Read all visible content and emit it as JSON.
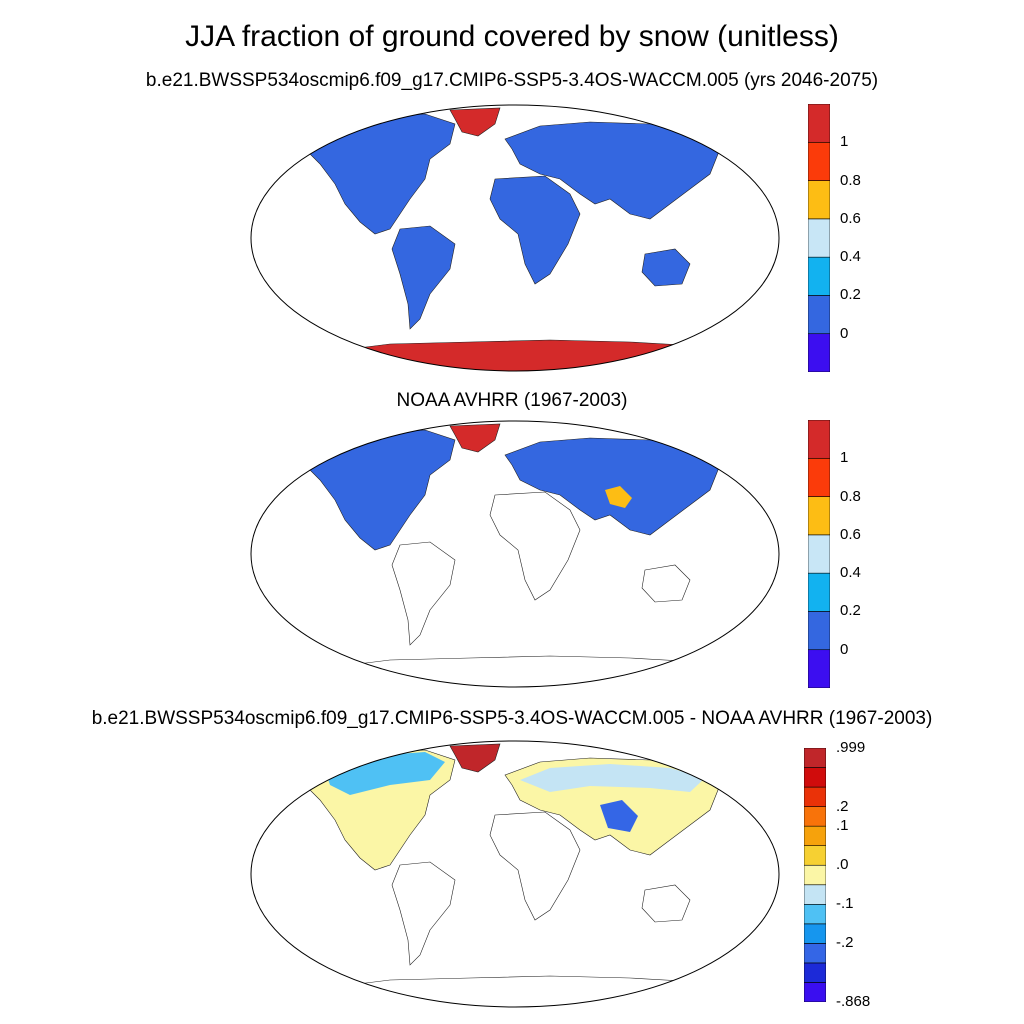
{
  "figure": {
    "title": "JJA fraction of ground covered by snow (unitless)"
  },
  "panels": [
    {
      "id": "model",
      "subtitle": "b.e21.BWSSP534oscmip6.f09_g17.CMIP6-SSP5-3.4OS-WACCM.005 (yrs 2046-2075)",
      "colorbar": {
        "colors": [
          "#3c0ef0",
          "#3467e0",
          "#12b2f0",
          "#c8e6f6",
          "#fdbd14",
          "#fb3b0a",
          "#d42a2a"
        ],
        "labels": [
          "0",
          "0.2",
          "0.4",
          "0.6",
          "0.8",
          "1"
        ]
      }
    },
    {
      "id": "obs",
      "subtitle": "NOAA AVHRR (1967-2003)",
      "colorbar": {
        "colors": [
          "#3c0ef0",
          "#3467e0",
          "#12b2f0",
          "#c8e6f6",
          "#fdbd14",
          "#fb3b0a",
          "#d42a2a"
        ],
        "labels": [
          "0",
          "0.2",
          "0.4",
          "0.6",
          "0.8",
          "1"
        ]
      }
    },
    {
      "id": "diff",
      "subtitle": "b.e21.BWSSP534oscmip6.f09_g17.CMIP6-SSP5-3.4OS-WACCM.005 - NOAA AVHRR (1967-2003)",
      "colorbar": {
        "colors": [
          "#3a0ef0",
          "#1c2ad8",
          "#3466e6",
          "#1696ee",
          "#4fc1f4",
          "#c4e4f4",
          "#fbf6a6",
          "#f6d032",
          "#f6a20c",
          "#f8730a",
          "#ea3208",
          "#d00c0c",
          "#c0262a"
        ],
        "labels": [
          ".999",
          ".2",
          ".1",
          ".0",
          "-.1",
          "-.2",
          "-.868"
        ]
      }
    }
  ],
  "colors": {
    "land_low": "#3467e0",
    "ice_high": "#d42a2a",
    "diff_neutral": "#fbf6a6"
  }
}
